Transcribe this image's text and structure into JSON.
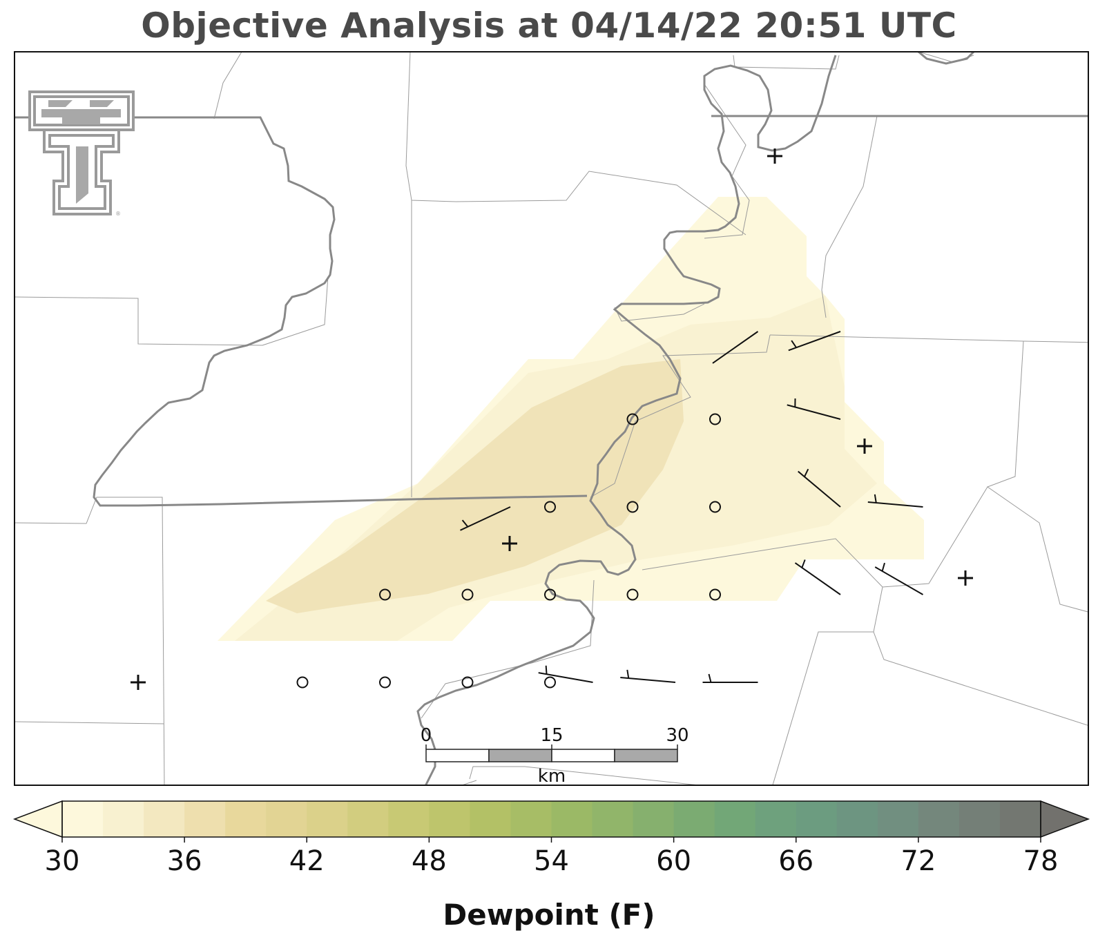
{
  "title": "Objective Analysis at 04/14/22 20:51 UTC",
  "logo": {
    "name": "texas-tech-double-t-logo",
    "color": "#9a9a9a"
  },
  "colorbar": {
    "label": "Dewpoint (F)",
    "min": 30,
    "max": 80,
    "step": 2,
    "extend": "both",
    "ticks": [
      "30",
      "36",
      "42",
      "48",
      "54",
      "60",
      "66",
      "72",
      "78"
    ],
    "colors": [
      "#fdf8dc",
      "#f8f1d0",
      "#f3e8c0",
      "#eedfae",
      "#e8d89c",
      "#e2d494",
      "#dbd18a",
      "#d2cd7f",
      "#c8c974",
      "#bec56c",
      "#b3c166",
      "#a7bd66",
      "#9bb966",
      "#91b56a",
      "#86b06e",
      "#7bab72",
      "#72a777",
      "#6ea17d",
      "#6c9c80",
      "#6d9581",
      "#718f80",
      "#74877c",
      "#747f77",
      "#737771",
      "#72716d"
    ]
  },
  "scale_bar": {
    "labels": [
      "0",
      "15",
      "30"
    ],
    "unit": "km"
  },
  "chart_data": {
    "type": "heatmap",
    "variable": "Dewpoint (F)",
    "valid_time": "04/14/22 20:51 UTC",
    "contour_fill": [
      {
        "level_range": [
          32,
          34
        ],
        "color": "#f8f1d0"
      },
      {
        "level_range": [
          34,
          36
        ],
        "color": "#f3e8c0"
      },
      {
        "level_range": [
          36,
          38
        ],
        "color": "#eedfae"
      }
    ],
    "stations_calm": [
      {
        "col": 4,
        "row": 1
      },
      {
        "col": 5,
        "row": 1
      },
      {
        "col": 3,
        "row": 2
      },
      {
        "col": 4,
        "row": 2
      },
      {
        "col": 5,
        "row": 2
      },
      {
        "col": 1,
        "row": 3
      },
      {
        "col": 2,
        "row": 3
      },
      {
        "col": 3,
        "row": 3
      },
      {
        "col": 4,
        "row": 3
      },
      {
        "col": 5,
        "row": 3
      },
      {
        "col": 0,
        "row": 4
      },
      {
        "col": 1,
        "row": 4
      },
      {
        "col": 2,
        "row": 4
      },
      {
        "col": 3,
        "row": 4
      }
    ],
    "wind_barbs": [
      {
        "col": 5,
        "row": 0,
        "dir_deg": 235,
        "speed_kt": 0
      },
      {
        "col": 6,
        "row": 0,
        "dir_deg": 250,
        "speed_kt": 5
      },
      {
        "col": 6,
        "row": 1,
        "dir_deg": 285,
        "speed_kt": 5
      },
      {
        "col": 2,
        "row": 2,
        "dir_deg": 245,
        "speed_kt": 5
      },
      {
        "col": 6,
        "row": 2,
        "dir_deg": 310,
        "speed_kt": 5
      },
      {
        "col": 7,
        "row": 2,
        "dir_deg": 275,
        "speed_kt": 5
      },
      {
        "col": 6,
        "row": 3,
        "dir_deg": 305,
        "speed_kt": 5
      },
      {
        "col": 7,
        "row": 3,
        "dir_deg": 300,
        "speed_kt": 5
      },
      {
        "col": 3,
        "row": 4,
        "dir_deg": 280,
        "speed_kt": 5
      },
      {
        "col": 4,
        "row": 4,
        "dir_deg": 275,
        "speed_kt": 5
      },
      {
        "col": 5,
        "row": 4,
        "dir_deg": 270,
        "speed_kt": 5
      }
    ],
    "station_markers": 6
  }
}
